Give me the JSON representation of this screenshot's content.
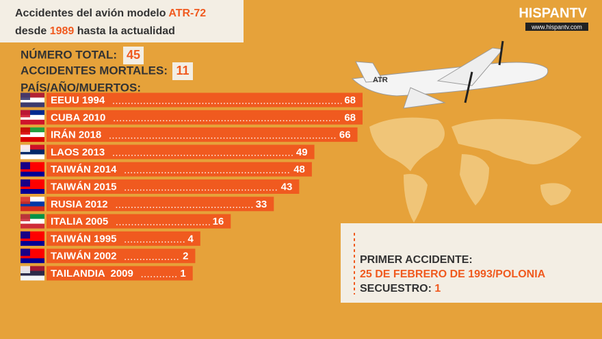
{
  "header": {
    "line1": "Accidentes del avión modelo",
    "model": "ATR-72",
    "line2_start": "desde",
    "year": "1989",
    "line2_end": "hasta la actualidad"
  },
  "logo": {
    "name": "HISPANTV",
    "url": "www.hispantv.com"
  },
  "stats": {
    "total_label": "NÚMERO TOTAL:",
    "total": 45,
    "fatal_label": "ACCIDENTES MORTALES:",
    "fatal": 11
  },
  "chart_data": {
    "type": "bar",
    "title": "PAÍS/AÑO/MUERTOS:",
    "orientation": "horizontal",
    "color": "#f05a1f",
    "categories": [
      "EEUU 1994",
      "CUBA 2010",
      "IRÁN 2018",
      "LAOS 2013",
      "TAIWÁN 2014",
      "TAIWÁN 2015",
      "RUSIA 2012",
      "ITALIA 2005",
      "TAIWÁN 1995",
      "TAIWÁN 2002",
      "TAILANDIA  2009"
    ],
    "values": [
      68,
      68,
      66,
      49,
      48,
      43,
      33,
      16,
      4,
      2,
      1
    ]
  },
  "info_box": {
    "first_label": "PRIMER ACCIDENTE:",
    "first_value": "25 DE FEBRERO DE 1993/POLONIA",
    "hijack_label": "SECUESTRO:",
    "hijack_value": 1
  }
}
